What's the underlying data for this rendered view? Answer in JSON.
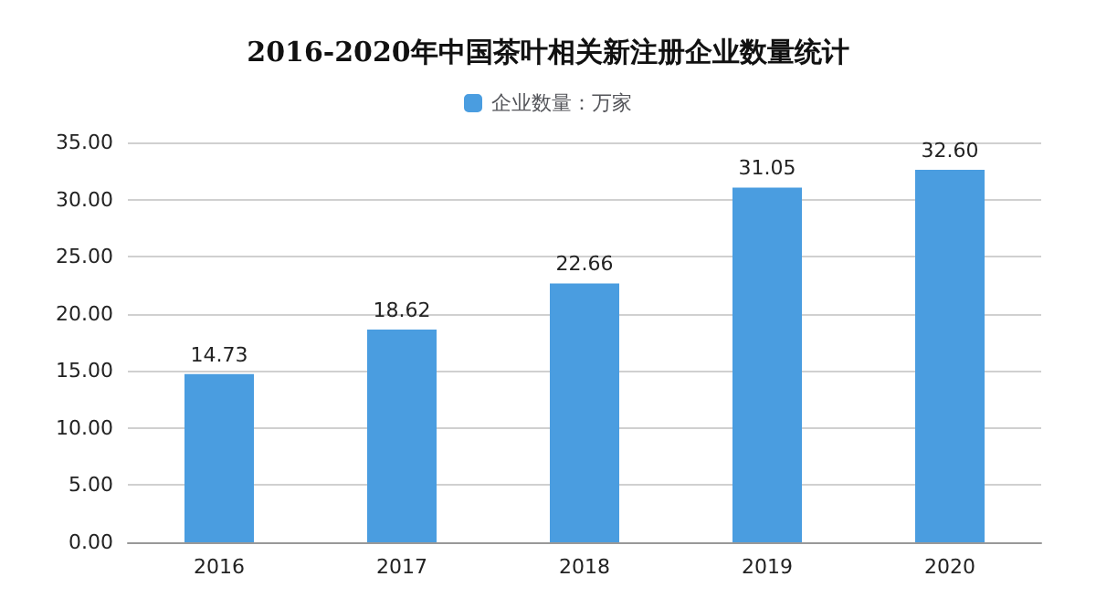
{
  "chart_data": {
    "type": "bar",
    "title": "2016-2020年中国茶叶相关新注册企业数量统计",
    "categories": [
      "2016",
      "2017",
      "2018",
      "2019",
      "2020"
    ],
    "series": [
      {
        "name": "企业数量：万家",
        "color": "#4a9de0",
        "values": [
          14.73,
          18.62,
          22.66,
          31.05,
          32.6
        ],
        "value_labels": [
          "14.73",
          "18.62",
          "22.66",
          "31.05",
          "32.60"
        ]
      }
    ],
    "ylim": [
      0,
      35
    ],
    "yticks": [
      {
        "value": 0,
        "label": "0.00"
      },
      {
        "value": 5,
        "label": "5.00"
      },
      {
        "value": 10,
        "label": "10.00"
      },
      {
        "value": 15,
        "label": "15.00"
      },
      {
        "value": 20,
        "label": "20.00"
      },
      {
        "value": 25,
        "label": "25.00"
      },
      {
        "value": 30,
        "label": "30.00"
      },
      {
        "value": 35,
        "label": "35.00"
      }
    ],
    "grid": "y",
    "legend": "top"
  }
}
